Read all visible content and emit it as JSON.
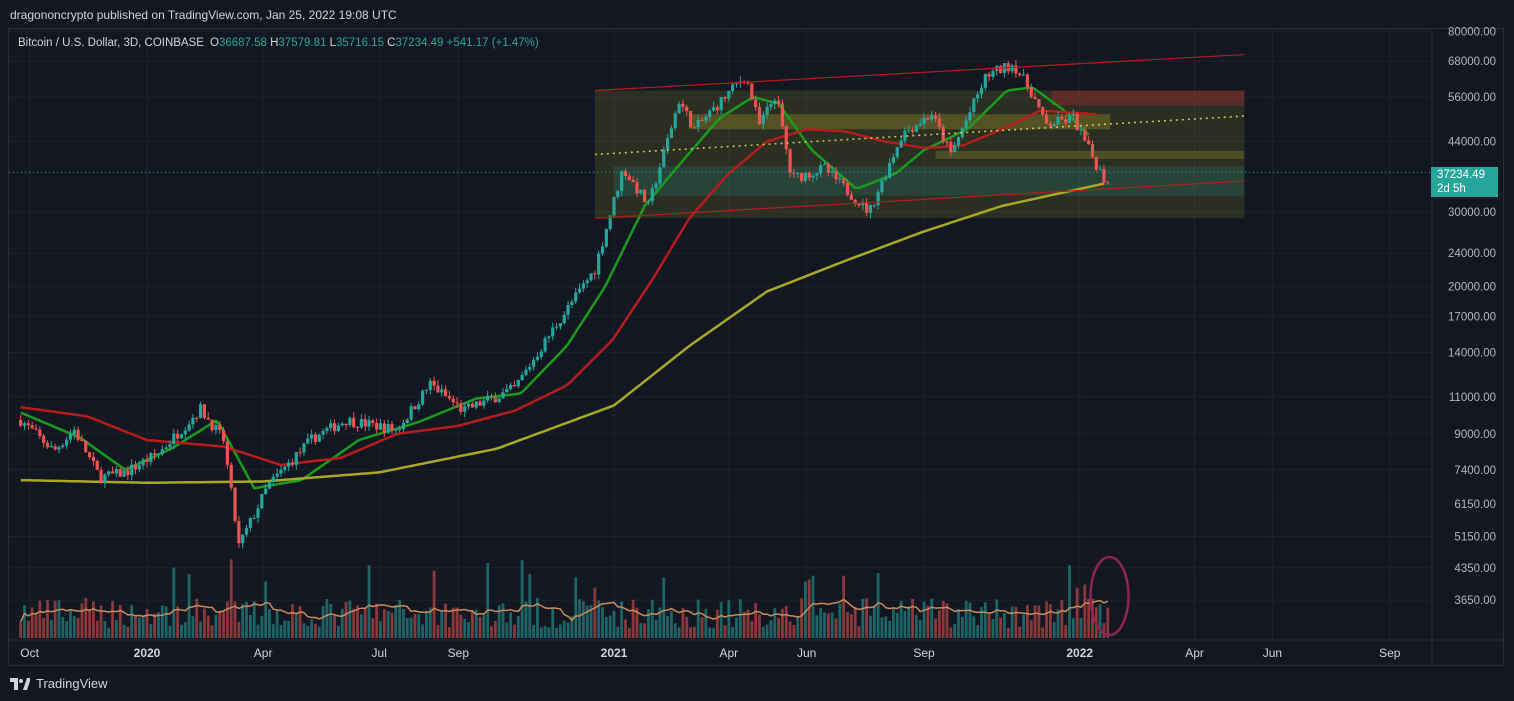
{
  "header": {
    "publisher_line": "dragononcrypto published on TradingView.com, Jan 25, 2022 19:08 UTC"
  },
  "legend": {
    "symbol": "Bitcoin / U.S. Dollar, 3D, COINBASE",
    "o_label": "O",
    "o_value": "36687.58",
    "h_label": "H",
    "h_value": "37579.81",
    "l_label": "L",
    "l_value": "35716.15",
    "c_label": "C",
    "c_value": "37234.49",
    "change": "+541.17 (+1.47%)"
  },
  "last_price": {
    "value": "37234.49",
    "countdown": "2d 5h"
  },
  "footer": {
    "brand": "TradingView",
    "logo_icon": "tradingview-logo-icon"
  },
  "colors": {
    "bg": "#131722",
    "up": "#26a69a",
    "down": "#ef5350",
    "ma_green": "#1b9b1b",
    "ma_red": "#b71c1c",
    "ma_olive": "#a8a824",
    "channel": "#b71c1c",
    "zone": "#6b6b2a"
  },
  "chart_data": {
    "type": "candlestick",
    "title": "Bitcoin / U.S. Dollar, 3D, COINBASE",
    "y_scale": "log",
    "y_ticks": [
      80000,
      68000,
      56000,
      44000,
      30000,
      24000,
      20000,
      17000,
      14000,
      11000,
      9000,
      7400,
      6150,
      5150,
      4350,
      3650
    ],
    "y_tick_labels": [
      "80000.00",
      "68000.00",
      "56000.00",
      "44000.00",
      "30000.00",
      "24000.00",
      "20000.00",
      "17000.00",
      "14000.00",
      "11000.00",
      "9000.00",
      "7400.00",
      "6150.00",
      "5150.00",
      "4350.00",
      "3650.00"
    ],
    "x_ticks": [
      {
        "label": "Oct",
        "date": "2019-10-01"
      },
      {
        "label": "2020",
        "date": "2020-01-01"
      },
      {
        "label": "Apr",
        "date": "2020-04-01"
      },
      {
        "label": "Jul",
        "date": "2020-07-01"
      },
      {
        "label": "Sep",
        "date": "2020-09-01"
      },
      {
        "label": "2021",
        "date": "2021-01-01"
      },
      {
        "label": "Apr",
        "date": "2021-04-01"
      },
      {
        "label": "Jun",
        "date": "2021-06-01"
      },
      {
        "label": "Sep",
        "date": "2021-09-01"
      },
      {
        "label": "2022",
        "date": "2022-01-01"
      },
      {
        "label": "Apr",
        "date": "2022-04-01"
      },
      {
        "label": "Jun",
        "date": "2022-06-01"
      },
      {
        "label": "Sep",
        "date": "2022-09-01"
      }
    ],
    "price_path": [
      [
        "2019-09-24",
        9700
      ],
      [
        "2019-10-20",
        8200
      ],
      [
        "2019-11-05",
        9200
      ],
      [
        "2019-11-25",
        7100
      ],
      [
        "2019-12-15",
        7300
      ],
      [
        "2020-01-10",
        8100
      ],
      [
        "2020-02-12",
        10300
      ],
      [
        "2020-03-01",
        8700
      ],
      [
        "2020-03-13",
        4900
      ],
      [
        "2020-04-05",
        6800
      ],
      [
        "2020-05-10",
        8800
      ],
      [
        "2020-06-05",
        9700
      ],
      [
        "2020-07-15",
        9200
      ],
      [
        "2020-08-10",
        11800
      ],
      [
        "2020-09-05",
        10200
      ],
      [
        "2020-10-15",
        11500
      ],
      [
        "2020-11-15",
        16000
      ],
      [
        "2020-12-17",
        22000
      ],
      [
        "2021-01-08",
        38000
      ],
      [
        "2021-01-28",
        31000
      ],
      [
        "2021-02-21",
        55000
      ],
      [
        "2021-03-05",
        47000
      ],
      [
        "2021-04-14",
        63000
      ],
      [
        "2021-04-25",
        48000
      ],
      [
        "2021-05-08",
        57000
      ],
      [
        "2021-05-20",
        36000
      ],
      [
        "2021-06-15",
        38000
      ],
      [
        "2021-07-20",
        30000
      ],
      [
        "2021-08-15",
        46000
      ],
      [
        "2021-09-07",
        51000
      ],
      [
        "2021-09-22",
        41000
      ],
      [
        "2021-10-20",
        63000
      ],
      [
        "2021-11-10",
        67000
      ],
      [
        "2021-11-25",
        57000
      ],
      [
        "2021-12-05",
        48000
      ],
      [
        "2021-12-27",
        50000
      ],
      [
        "2022-01-10",
        41000
      ],
      [
        "2022-01-22",
        35000
      ],
      [
        "2022-01-25",
        37234
      ]
    ],
    "series": [
      {
        "name": "",
        "color": "#1b9b1b",
        "values": [
          [
            "2019-09-24",
            10100
          ],
          [
            "2019-11-10",
            8800
          ],
          [
            "2019-12-15",
            7400
          ],
          [
            "2020-01-20",
            8300
          ],
          [
            "2020-02-25",
            9700
          ],
          [
            "2020-03-25",
            6700
          ],
          [
            "2020-05-01",
            7000
          ],
          [
            "2020-06-15",
            8700
          ],
          [
            "2020-08-01",
            9600
          ],
          [
            "2020-09-15",
            10900
          ],
          [
            "2020-10-20",
            11200
          ],
          [
            "2020-11-25",
            14500
          ],
          [
            "2020-12-25",
            20000
          ],
          [
            "2021-01-25",
            31000
          ],
          [
            "2021-02-25",
            40000
          ],
          [
            "2021-03-25",
            50000
          ],
          [
            "2021-04-20",
            56000
          ],
          [
            "2021-05-10",
            54000
          ],
          [
            "2021-06-05",
            42000
          ],
          [
            "2021-07-10",
            34000
          ],
          [
            "2021-08-10",
            37000
          ],
          [
            "2021-09-01",
            42000
          ],
          [
            "2021-10-05",
            47000
          ],
          [
            "2021-11-05",
            58000
          ],
          [
            "2021-11-25",
            59000
          ],
          [
            "2021-12-20",
            52000
          ],
          [
            "2022-01-10",
            45000
          ]
        ]
      },
      {
        "name": "",
        "color": "#b71c1c",
        "values": [
          [
            "2019-09-24",
            10400
          ],
          [
            "2019-11-15",
            9900
          ],
          [
            "2020-01-01",
            8700
          ],
          [
            "2020-03-01",
            8400
          ],
          [
            "2020-04-15",
            7600
          ],
          [
            "2020-06-01",
            7900
          ],
          [
            "2020-07-15",
            9000
          ],
          [
            "2020-09-01",
            9400
          ],
          [
            "2020-10-15",
            10200
          ],
          [
            "2020-11-25",
            11700
          ],
          [
            "2020-12-31",
            15000
          ],
          [
            "2021-02-01",
            21000
          ],
          [
            "2021-03-01",
            29000
          ],
          [
            "2021-04-01",
            37000
          ],
          [
            "2021-05-01",
            44000
          ],
          [
            "2021-06-01",
            47000
          ],
          [
            "2021-07-01",
            46500
          ],
          [
            "2021-08-01",
            44000
          ],
          [
            "2021-09-01",
            42500
          ],
          [
            "2021-10-01",
            43000
          ],
          [
            "2021-11-01",
            47000
          ],
          [
            "2021-12-01",
            52000
          ],
          [
            "2022-01-15",
            51000
          ]
        ]
      },
      {
        "name": "",
        "color": "#a8a824",
        "values": [
          [
            "2019-09-24",
            7000
          ],
          [
            "2020-01-01",
            6900
          ],
          [
            "2020-04-01",
            6950
          ],
          [
            "2020-07-01",
            7300
          ],
          [
            "2020-10-01",
            8300
          ],
          [
            "2021-01-01",
            10500
          ],
          [
            "2021-03-01",
            14500
          ],
          [
            "2021-05-01",
            19500
          ],
          [
            "2021-07-01",
            23000
          ],
          [
            "2021-09-01",
            27000
          ],
          [
            "2021-11-01",
            31000
          ],
          [
            "2022-01-20",
            35000
          ]
        ]
      }
    ],
    "channel": {
      "upper": [
        [
          "2020-12-17",
          58000
        ],
        [
          "2022-05-10",
          70500
        ]
      ],
      "lower": [
        [
          "2020-12-17",
          29000
        ],
        [
          "2022-05-10",
          35500
        ]
      ],
      "mid_dotted": [
        [
          "2020-12-17",
          41000
        ],
        [
          "2022-05-10",
          50500
        ]
      ]
    },
    "zones": [
      {
        "from": "2020-12-17",
        "to": "2022-05-10",
        "low": 29000,
        "high": 58000
      },
      {
        "from": "2021-03-01",
        "to": "2022-01-25",
        "low": 47000,
        "high": 51000
      },
      {
        "from": "2021-12-10",
        "to": "2022-05-10",
        "low": 53500,
        "high": 58000
      },
      {
        "from": "2021-09-10",
        "to": "2022-05-10",
        "low": 40000,
        "high": 41800
      },
      {
        "from": "2021-01-01",
        "to": "2022-05-10",
        "low": 32800,
        "high": 38500
      }
    ],
    "annotation": {
      "type": "circle",
      "date": "2022-01-22",
      "target": "volume"
    }
  }
}
